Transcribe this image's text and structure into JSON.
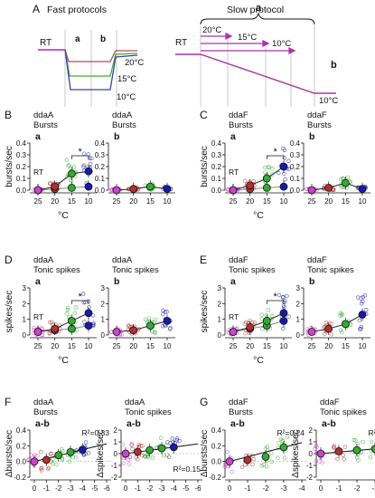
{
  "colors": {
    "rt": "#cc44cc",
    "c25": "#cc44cc",
    "c20": "#b03030",
    "c15": "#33aa33",
    "c10": "#1a1aaa",
    "gray": "#888888",
    "slow": "#aa33aa"
  },
  "panelA": {
    "letter": "A",
    "fast": {
      "title": "Fast protocols",
      "rt": "RT",
      "a": "a",
      "b": "b",
      "t20": "20°C",
      "t15": "15°C",
      "t10": "10°C"
    },
    "slow": {
      "title": "Slow protocol",
      "a": "a",
      "b": "b",
      "rt": "RT",
      "t20": "20°C",
      "t15": "15°C",
      "t10a": "10°C",
      "t10": "10°C"
    }
  },
  "chart_data": [
    {
      "id": "B-a",
      "letter": "B",
      "neuron": "ddaA",
      "measure": "Bursts",
      "sub": "a",
      "type": "scatter",
      "ylabel": "bursts/sec",
      "xlabel": "°C",
      "categories": [
        "25",
        "20",
        "15",
        "10"
      ],
      "ylim": [
        0,
        0.4
      ],
      "yticks": [
        "0.0",
        "0.1",
        "0.2",
        "0.3",
        "0.4"
      ],
      "rt_label": "RT",
      "sig": "*",
      "sig_between": [
        "15",
        "10"
      ],
      "series": [
        {
          "values": [
            0.0,
            0.01,
            0.02,
            0.03
          ]
        },
        {
          "values": [
            0.0,
            0.03,
            0.14,
            0.16
          ]
        }
      ]
    },
    {
      "id": "B-b",
      "neuron": "ddaA",
      "measure": "Bursts",
      "sub": "b",
      "type": "scatter",
      "categories": [
        "25",
        "20",
        "15",
        "10"
      ],
      "ylim": [
        0,
        0.4
      ],
      "yticks": [
        "0.0",
        "0.1",
        "0.2",
        "0.3",
        "0.4"
      ],
      "series": [
        {
          "values": [
            0.0,
            0.01,
            0.03,
            0.01
          ]
        }
      ]
    },
    {
      "id": "C-a",
      "letter": "C",
      "neuron": "ddaF",
      "measure": "Bursts",
      "sub": "a",
      "type": "scatter",
      "ylabel": "bursts/sec",
      "xlabel": "°C",
      "categories": [
        "25",
        "20",
        "15",
        "10"
      ],
      "ylim": [
        0,
        0.4
      ],
      "yticks": [
        "0.0",
        "0.1",
        "0.2",
        "0.3",
        "0.4"
      ],
      "rt_label": "RT",
      "sig": "*",
      "sig_between": [
        "15",
        "10"
      ],
      "series": [
        {
          "values": [
            0.0,
            0.01,
            0.02,
            0.03
          ]
        },
        {
          "values": [
            0.0,
            0.04,
            0.1,
            0.2
          ]
        }
      ]
    },
    {
      "id": "C-b",
      "neuron": "ddaF",
      "measure": "Bursts",
      "sub": "b",
      "type": "scatter",
      "categories": [
        "25",
        "20",
        "15",
        "10"
      ],
      "ylim": [
        0,
        0.4
      ],
      "yticks": [
        "0.0",
        "0.1",
        "0.2",
        "0.3",
        "0.4"
      ],
      "series": [
        {
          "values": [
            0.0,
            0.02,
            0.06,
            0.01
          ]
        }
      ]
    },
    {
      "id": "D-a",
      "letter": "D",
      "neuron": "ddaA",
      "measure": "Tonic spikes",
      "sub": "a",
      "type": "scatter",
      "ylabel": "spikes/sec",
      "xlabel": "°C",
      "categories": [
        "25",
        "20",
        "15",
        "10"
      ],
      "ylim": [
        0,
        3
      ],
      "yticks": [
        "0",
        "1",
        "2",
        "3"
      ],
      "rt_label": "RT",
      "sig": "*",
      "sig_between": [
        "15",
        "10"
      ],
      "series": [
        {
          "values": [
            0.2,
            0.3,
            0.4,
            0.6
          ]
        },
        {
          "values": [
            0.2,
            0.4,
            0.9,
            1.4
          ]
        }
      ]
    },
    {
      "id": "D-b",
      "neuron": "ddaA",
      "measure": "Tonic spikes",
      "sub": "b",
      "type": "scatter",
      "categories": [
        "25",
        "20",
        "15",
        "10"
      ],
      "ylim": [
        0,
        3
      ],
      "yticks": [
        "0",
        "1",
        "2",
        "3"
      ],
      "series": [
        {
          "values": [
            0.2,
            0.3,
            0.6,
            0.9
          ]
        }
      ]
    },
    {
      "id": "E-a",
      "letter": "E",
      "neuron": "ddaF",
      "measure": "Tonic spikes",
      "sub": "a",
      "type": "scatter",
      "ylabel": "spikes/sec",
      "xlabel": "°C",
      "categories": [
        "25",
        "20",
        "15",
        "10"
      ],
      "ylim": [
        0,
        3
      ],
      "yticks": [
        "0",
        "1",
        "2",
        "3"
      ],
      "rt_label": "RT",
      "sig": "*",
      "sig_between": [
        "15",
        "10"
      ],
      "series": [
        {
          "values": [
            0.2,
            0.4,
            0.6,
            0.9
          ]
        },
        {
          "values": [
            0.2,
            0.5,
            0.9,
            1.4
          ]
        }
      ]
    },
    {
      "id": "E-b",
      "neuron": "ddaF",
      "measure": "Tonic spikes",
      "sub": "b",
      "type": "scatter",
      "categories": [
        "25",
        "20",
        "15",
        "10"
      ],
      "ylim": [
        0,
        3
      ],
      "yticks": [
        "0",
        "1",
        "2",
        "3"
      ],
      "series": [
        {
          "values": [
            0.2,
            0.4,
            0.7,
            1.3
          ]
        }
      ]
    },
    {
      "id": "F-1",
      "letter": "F",
      "neuron": "ddaA",
      "measure": "Bursts",
      "sub": "a-b",
      "type": "scatter",
      "ylabel": "Δbursts/sec",
      "xlabel": "°C/s",
      "xticks": [
        "0",
        "-1",
        "-2",
        "-3",
        "-4",
        "-5",
        "-6"
      ],
      "xlim": [
        0,
        -6
      ],
      "ylim": [
        -0.2,
        0.4
      ],
      "yticks": [
        "-0.2",
        "0.0",
        "0.2",
        "0.4"
      ],
      "r2": "R²=0.33",
      "x": [
        0,
        -1,
        -2,
        -3,
        -4
      ],
      "y": [
        0.0,
        0.02,
        0.08,
        0.12,
        0.15
      ]
    },
    {
      "id": "F-2",
      "neuron": "ddaA",
      "measure": "Tonic spikes",
      "sub": "a-b",
      "type": "scatter",
      "ylabel": "Δspikes/sec",
      "xlabel": "°C/s",
      "xticks": [
        "0",
        "-1",
        "-2",
        "-3",
        "-4",
        "-5",
        "-6"
      ],
      "xlim": [
        0,
        -6
      ],
      "ylim": [
        -2,
        2
      ],
      "yticks": [
        "-2",
        "-1",
        "0",
        "1",
        "2"
      ],
      "r2": "R²=0.15",
      "x": [
        0,
        -1,
        -2,
        -3,
        -4
      ],
      "y": [
        0.0,
        0.15,
        0.3,
        0.45,
        0.55
      ]
    },
    {
      "id": "G-1",
      "letter": "G",
      "neuron": "ddaF",
      "measure": "Bursts",
      "sub": "a-b",
      "type": "scatter",
      "ylabel": "Δbursts/sec",
      "xlabel": "°C/s",
      "xticks": [
        "0",
        "-1",
        "-2",
        "-3",
        "-4"
      ],
      "xlim": [
        0,
        -4
      ],
      "ylim": [
        -0.2,
        0.4
      ],
      "yticks": [
        "-0.2",
        "0.0",
        "0.2",
        "0.4"
      ],
      "r2": "R²=0.24",
      "x": [
        0,
        -1,
        -2,
        -3
      ],
      "y": [
        0.0,
        0.02,
        0.06,
        0.18
      ]
    },
    {
      "id": "G-2",
      "neuron": "ddaF",
      "measure": "Tonic spikes",
      "sub": "a-b",
      "type": "scatter",
      "ylabel": "Δspikes/sec",
      "xlabel": "°C/s",
      "xticks": [
        "0",
        "-1",
        "-2",
        "-3",
        "-4"
      ],
      "xlim": [
        0,
        -4
      ],
      "ylim": [
        -2,
        2
      ],
      "yticks": [
        "-2",
        "-1",
        "0",
        "1",
        "2"
      ],
      "r2": "R²=0.07",
      "x": [
        0,
        -1,
        -2,
        -3
      ],
      "y": [
        0.0,
        0.2,
        0.3,
        0.4
      ]
    }
  ]
}
